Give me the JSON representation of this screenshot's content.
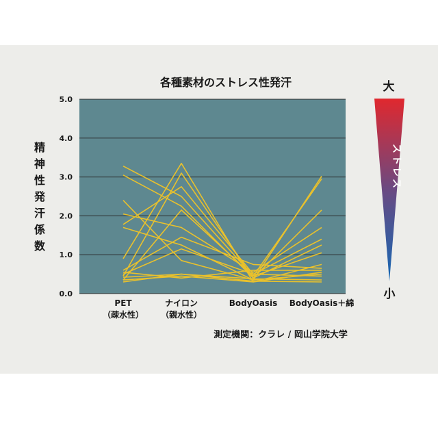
{
  "chart_data": {
    "type": "line",
    "title": "各種素材のストレス性発汗",
    "ylabel": "精神性発汗係数",
    "ylim": [
      0,
      5
    ],
    "yticks": [
      "0.0",
      "1.0",
      "2.0",
      "3.0",
      "4.0",
      "5.0"
    ],
    "categories": [
      {
        "line1": "PET",
        "line2": "（疎水性）"
      },
      {
        "line1": "ナイロン",
        "line2": "（親水性）"
      },
      {
        "line1": "BodyOasis",
        "line2": ""
      },
      {
        "line1": "BodyOasis＋綿",
        "line2": ""
      }
    ],
    "grid": true,
    "series": [
      {
        "values": [
          3.28,
          2.5,
          0.45,
          2.95
        ]
      },
      {
        "values": [
          3.05,
          2.25,
          0.4,
          2.15
        ]
      },
      {
        "values": [
          2.4,
          0.85,
          0.35,
          3.02
        ]
      },
      {
        "values": [
          2.05,
          1.7,
          0.55,
          1.7
        ]
      },
      {
        "values": [
          1.78,
          2.75,
          0.5,
          1.4
        ]
      },
      {
        "values": [
          1.7,
          1.25,
          0.35,
          0.5
        ]
      },
      {
        "values": [
          0.9,
          3.35,
          0.3,
          0.75
        ]
      },
      {
        "values": [
          0.45,
          3.1,
          0.4,
          1.25
        ]
      },
      {
        "values": [
          0.35,
          2.15,
          0.45,
          1.05
        ]
      },
      {
        "values": [
          0.6,
          1.45,
          0.75,
          0.65
        ]
      },
      {
        "values": [
          0.5,
          1.15,
          0.5,
          0.45
        ]
      },
      {
        "values": [
          0.42,
          0.5,
          0.38,
          0.35
        ]
      },
      {
        "values": [
          0.35,
          0.45,
          0.3,
          0.55
        ]
      },
      {
        "values": [
          0.3,
          0.5,
          0.32,
          0.3
        ]
      },
      {
        "values": [
          0.55,
          0.4,
          0.6,
          0.6
        ]
      }
    ],
    "stress_scale": {
      "label": "ストレス",
      "top_label": "大",
      "bottom_label": "小"
    },
    "source_note": "測定機関：クラレ / 岡山学院大学"
  },
  "colors": {
    "plot_background": "#5e8890",
    "line": "#e9c12c",
    "gridline": "#2a2a2a",
    "gradient_top": "#e0282e",
    "gradient_bottom": "#1468b4"
  }
}
